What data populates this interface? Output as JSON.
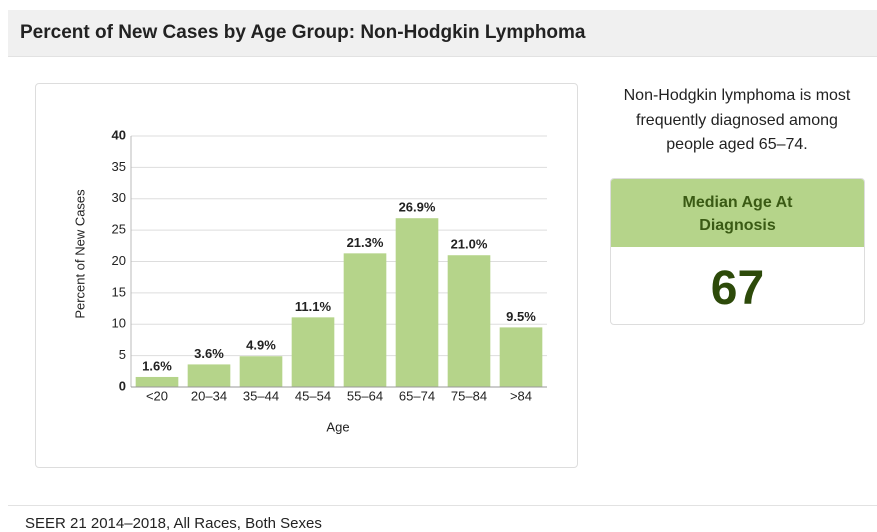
{
  "header": {
    "title": "Percent of New Cases by Age Group: Non-Hodgkin Lymphoma"
  },
  "chart_data": {
    "type": "bar",
    "categories": [
      "<20",
      "20–34",
      "35–44",
      "45–54",
      "55–64",
      "65–74",
      "75–84",
      ">84"
    ],
    "values": [
      1.6,
      3.6,
      4.9,
      11.1,
      21.3,
      26.9,
      21.0,
      9.5
    ],
    "value_labels": [
      "1.6%",
      "3.6%",
      "4.9%",
      "11.1%",
      "21.3%",
      "26.9%",
      "21.0%",
      "9.5%"
    ],
    "color": "#b5d48a",
    "xlabel": "Age",
    "ylabel": "Percent of New Cases",
    "ylim": [
      0,
      40
    ],
    "yticks": [
      0,
      5,
      10,
      15,
      20,
      25,
      30,
      35,
      40
    ],
    "grid": true
  },
  "summary": "Non-Hodgkin lymphoma is most frequently diagnosed among people aged 65–74.",
  "median": {
    "title": "Median Age At Diagnosis",
    "value": 67
  },
  "footer": "SEER 21 2014–2018, All Races, Both Sexes"
}
